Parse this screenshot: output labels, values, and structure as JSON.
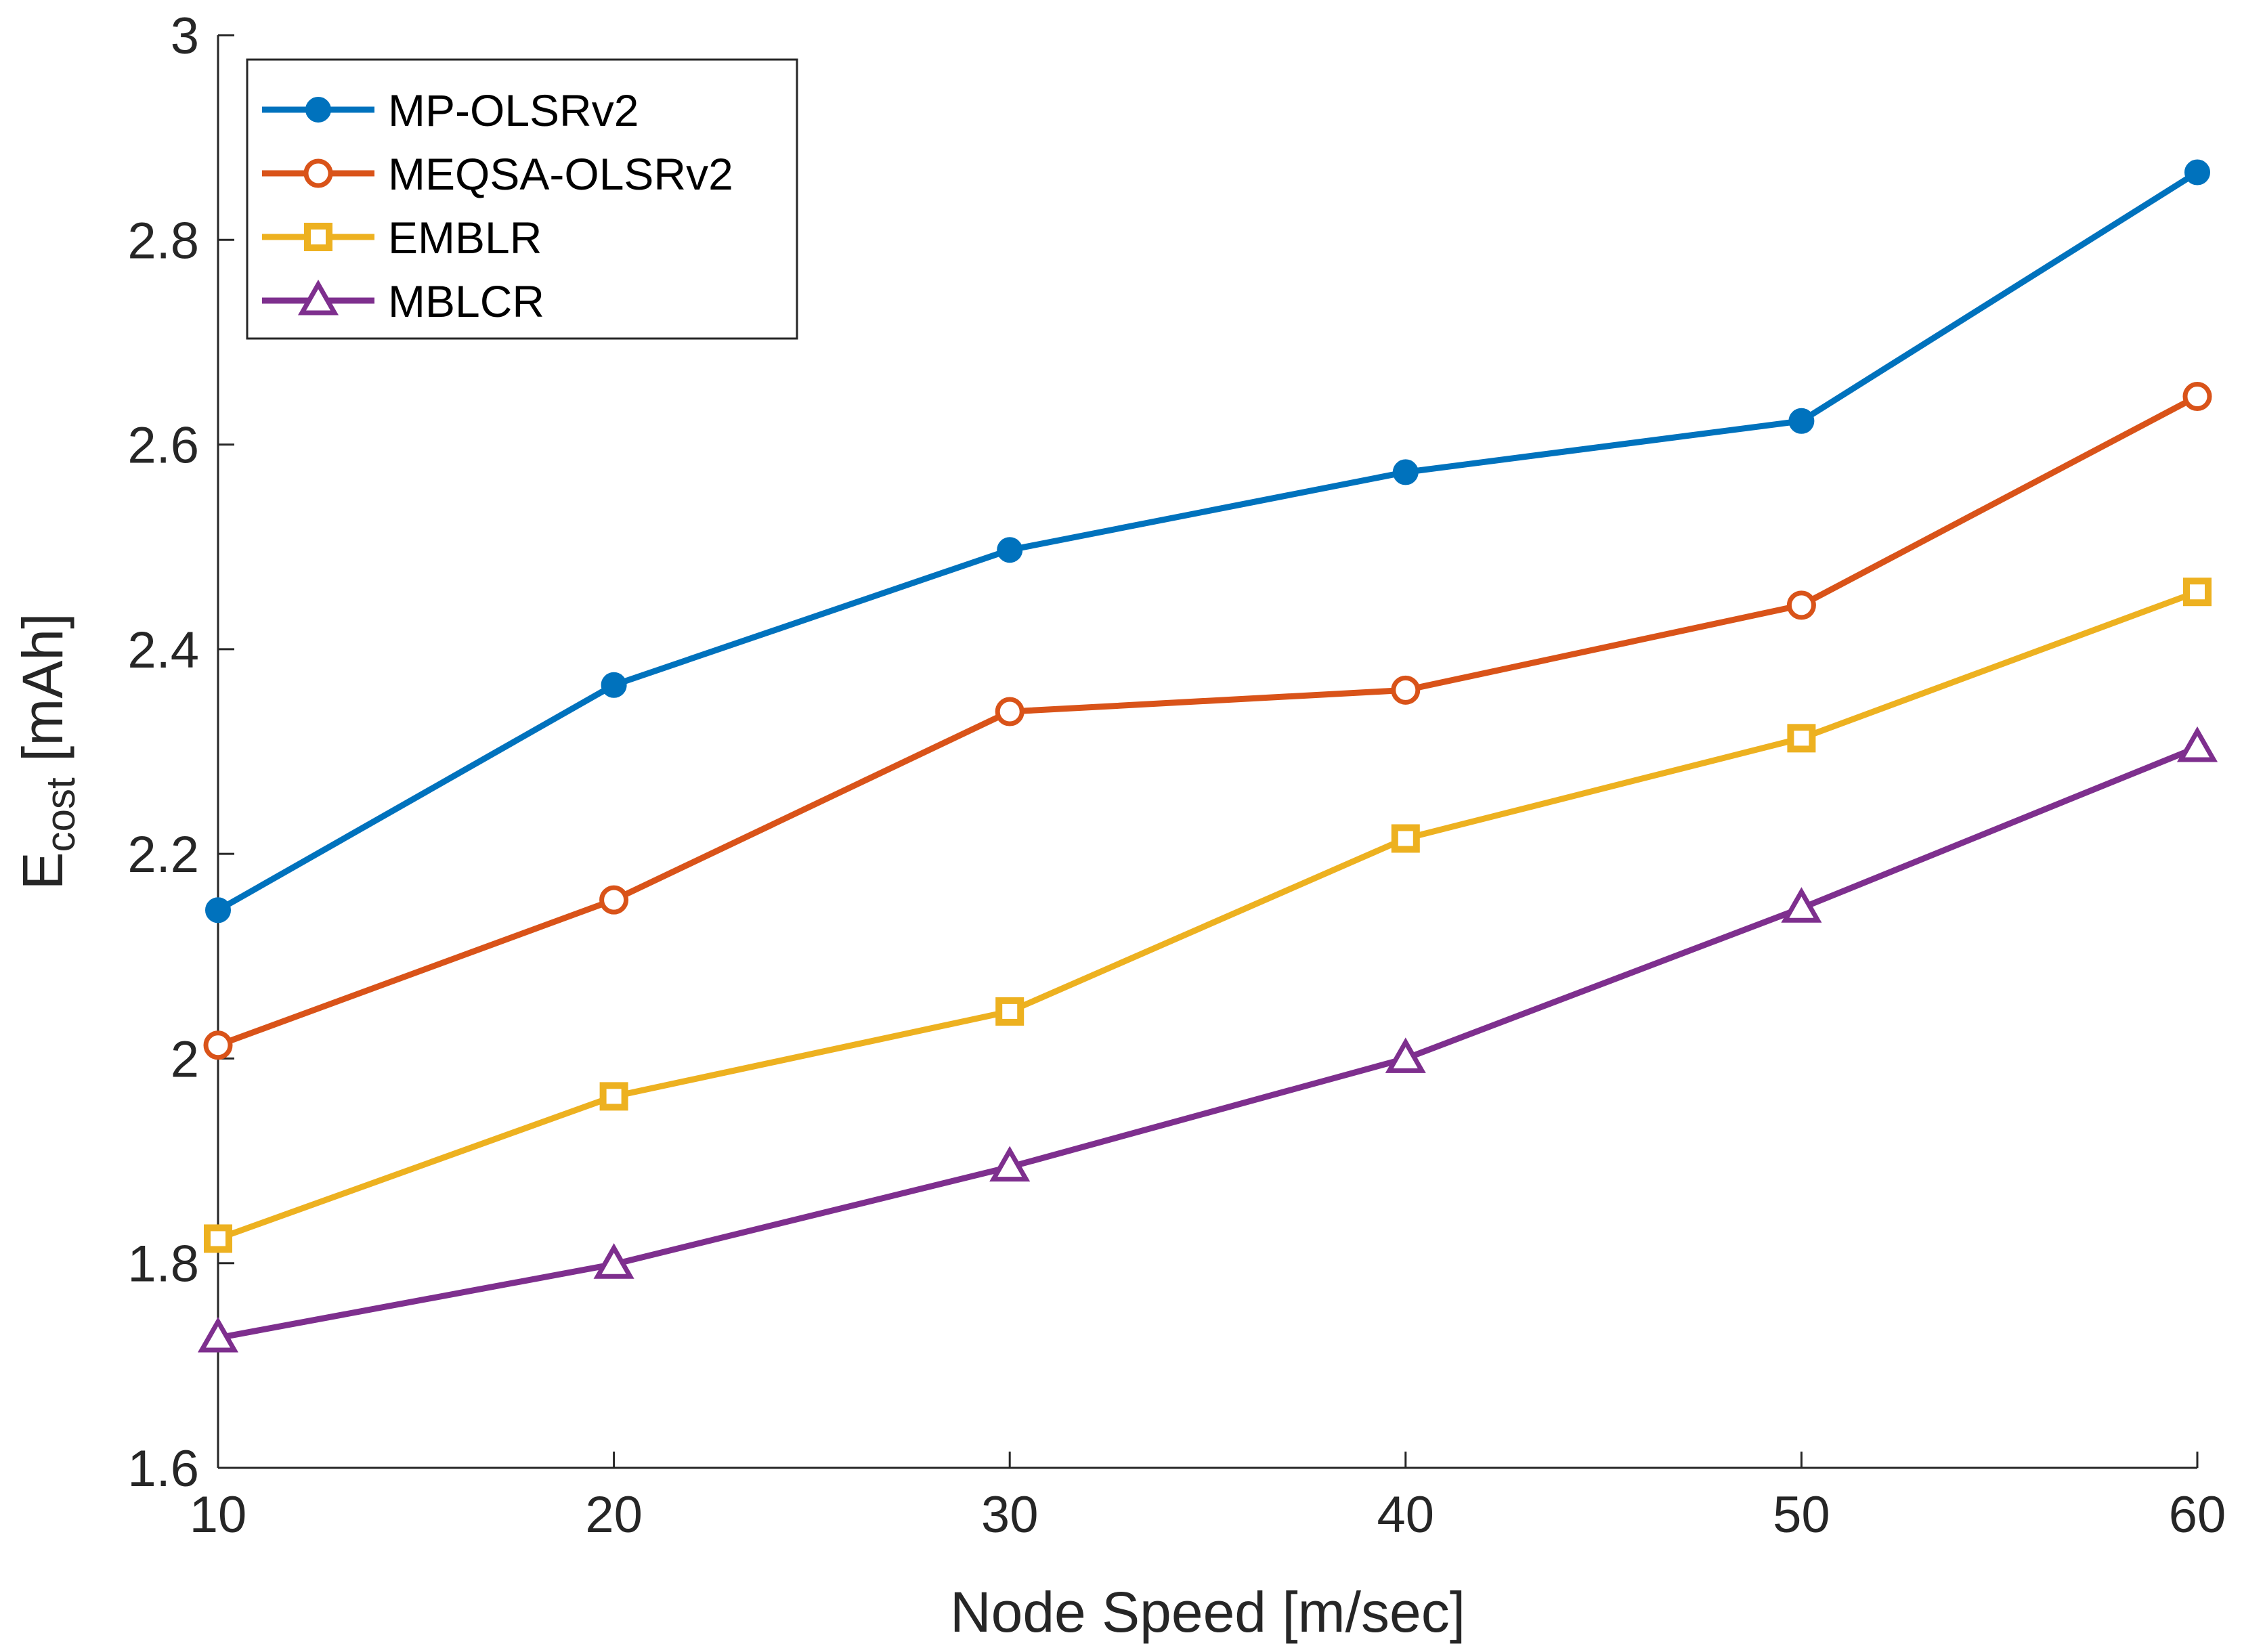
{
  "chart_data": {
    "type": "line",
    "title": "",
    "xlabel": "Node Speed [m/sec]",
    "ylabel_main": "E",
    "ylabel_sub": "cost",
    "ylabel_unit": " [mAh]",
    "x": [
      10,
      20,
      30,
      40,
      50,
      60
    ],
    "xlim": [
      10,
      60
    ],
    "ylim": [
      1.6,
      3.0
    ],
    "xticks": [
      10,
      20,
      30,
      40,
      50,
      60
    ],
    "yticks": [
      1.6,
      1.8,
      2.0,
      2.2,
      2.4,
      2.6,
      2.8,
      3.0
    ],
    "xtick_labels": [
      "10",
      "20",
      "30",
      "40",
      "50",
      "60"
    ],
    "ytick_labels": [
      "1.6",
      "1.8",
      "2",
      "2.2",
      "2.4",
      "2.6",
      "2.8",
      "3"
    ],
    "grid": false,
    "legend_position": "top-left",
    "series": [
      {
        "name": "MP-OLSRv2",
        "color": "#0072BD",
        "marker": "filled-circle",
        "values": [
          2.145,
          2.365,
          2.497,
          2.573,
          2.623,
          2.866
        ]
      },
      {
        "name": "MEQSA-OLSRv2",
        "color": "#D95319",
        "marker": "open-circle",
        "values": [
          2.013,
          2.155,
          2.339,
          2.36,
          2.443,
          2.647
        ]
      },
      {
        "name": "EMBLR",
        "color": "#EDB120",
        "marker": "square",
        "values": [
          1.824,
          1.963,
          2.046,
          2.215,
          2.313,
          2.456
        ]
      },
      {
        "name": "MBLCR",
        "color": "#7E2F8E",
        "marker": "triangle",
        "values": [
          1.727,
          1.799,
          1.894,
          2.0,
          2.147,
          2.304
        ]
      }
    ]
  }
}
